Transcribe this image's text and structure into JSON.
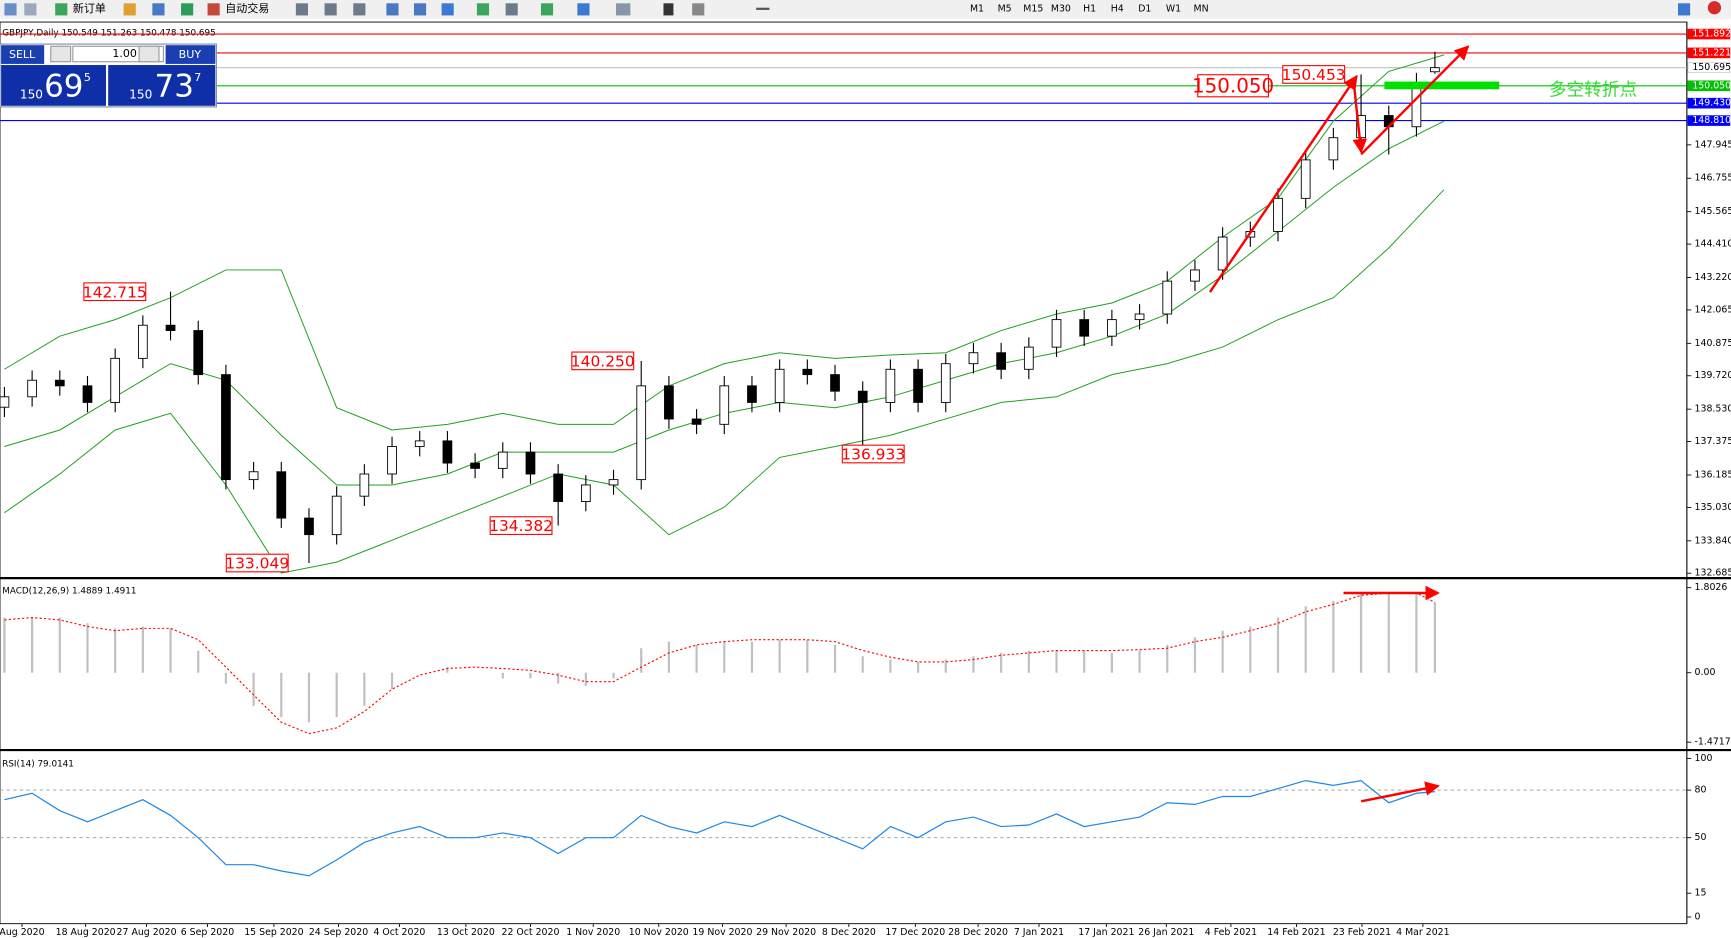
{
  "toolbar": {
    "new_order": "新订单",
    "auto_trade": "自动交易",
    "timeframes": [
      "M1",
      "M5",
      "M15",
      "M30",
      "H1",
      "H4",
      "D1",
      "W1",
      "MN"
    ]
  },
  "trade_panel": {
    "sell": "SELL",
    "lot": "1.00",
    "buy": "BUY",
    "bid_big": "150",
    "bid": "69",
    "bid_pip": "5",
    "ask_big": "150",
    "ask": "73",
    "ask_pip": "7"
  },
  "note": "多空转折点",
  "chart_data": [
    {
      "type": "candlestick",
      "title": "GBPJPY,Daily  150.549 151.263 150.478 150.695",
      "x": [
        0,
        3,
        6,
        9,
        12,
        15,
        18,
        21,
        24,
        27,
        30,
        33,
        36,
        39,
        42,
        45,
        48,
        51,
        54,
        57,
        60,
        63,
        66,
        69,
        72,
        75,
        78,
        81,
        84,
        87,
        90,
        93,
        96,
        99,
        102,
        105,
        108,
        111,
        114,
        117,
        120,
        123,
        126,
        129,
        132,
        135,
        138,
        141,
        144,
        147,
        150,
        153,
        155
      ],
      "open": [
        138.6,
        138.97,
        139.56,
        139.36,
        138.77,
        140.34,
        141.52,
        141.33,
        139.76,
        136.02,
        136.3,
        134.65,
        134.06,
        135.43,
        136.22,
        137.2,
        137.4,
        136.61,
        136.42,
        137.0,
        136.22,
        135.24,
        135.83,
        136.02,
        139.36,
        138.18,
        137.99,
        139.36,
        138.77,
        139.95,
        139.76,
        139.17,
        138.77,
        139.95,
        138.77,
        140.15,
        140.54,
        139.95,
        140.74,
        141.72,
        141.13,
        141.72,
        141.92,
        143.09,
        143.49,
        144.66,
        144.86,
        146.04,
        147.41,
        148.2,
        148.99,
        148.59,
        150.549
      ],
      "high": [
        139.32,
        139.91,
        139.91,
        139.71,
        140.69,
        141.87,
        142.715,
        141.68,
        140.11,
        136.65,
        136.65,
        135.0,
        135.78,
        136.57,
        137.55,
        137.75,
        137.75,
        136.96,
        137.35,
        137.35,
        136.57,
        136.18,
        136.37,
        140.25,
        139.71,
        138.53,
        139.71,
        139.71,
        140.3,
        140.3,
        140.11,
        139.52,
        140.3,
        140.3,
        140.5,
        140.89,
        140.89,
        141.09,
        142.07,
        142.07,
        142.07,
        142.27,
        143.44,
        143.84,
        145.01,
        145.21,
        146.39,
        147.76,
        148.55,
        150.453,
        149.34,
        150.51,
        151.263
      ],
      "low": [
        138.25,
        138.62,
        139.01,
        138.42,
        138.42,
        139.99,
        140.98,
        139.41,
        135.67,
        135.67,
        134.3,
        133.049,
        133.71,
        135.08,
        135.87,
        136.85,
        136.26,
        136.07,
        136.07,
        135.87,
        134.382,
        134.89,
        135.48,
        135.67,
        137.83,
        137.64,
        137.64,
        138.42,
        138.42,
        139.41,
        138.82,
        136.933,
        138.42,
        138.42,
        138.42,
        139.8,
        139.6,
        139.6,
        140.39,
        140.78,
        140.78,
        141.37,
        141.57,
        142.74,
        143.14,
        144.31,
        144.51,
        145.69,
        147.06,
        147.85,
        147.6,
        148.24,
        150.478
      ],
      "close": [
        138.97,
        139.56,
        139.36,
        138.77,
        140.34,
        141.52,
        141.33,
        139.76,
        136.02,
        136.3,
        134.65,
        134.06,
        135.43,
        136.22,
        137.2,
        137.4,
        136.61,
        136.42,
        137.0,
        136.22,
        135.24,
        135.83,
        136.02,
        139.36,
        138.18,
        137.99,
        139.36,
        138.77,
        139.95,
        139.76,
        139.17,
        138.77,
        139.95,
        138.77,
        140.15,
        140.54,
        139.95,
        140.74,
        141.72,
        141.13,
        141.72,
        141.92,
        143.09,
        143.49,
        144.66,
        144.86,
        146.04,
        147.41,
        148.2,
        148.99,
        148.59,
        150.16,
        150.695
      ],
      "bollinger": {
        "color": "#1fa01f",
        "x": [
          0,
          6,
          12,
          18,
          24,
          30,
          36,
          42,
          48,
          54,
          60,
          66,
          72,
          78,
          84,
          90,
          96,
          102,
          108,
          114,
          120,
          126,
          132,
          138,
          144,
          150,
          156
        ],
        "upper": [
          139.95,
          141.13,
          141.72,
          142.5,
          143.49,
          143.49,
          138.58,
          137.79,
          137.99,
          138.38,
          137.99,
          137.99,
          139.36,
          140.15,
          140.54,
          140.34,
          140.46,
          140.54,
          141.33,
          141.92,
          142.31,
          143.09,
          144.66,
          146.04,
          148.79,
          150.56,
          151.15
        ],
        "middle": [
          137.2,
          137.79,
          138.97,
          140.15,
          139.56,
          137.6,
          135.83,
          135.83,
          136.22,
          137.0,
          137.0,
          137.0,
          137.79,
          138.38,
          138.77,
          138.58,
          138.97,
          139.56,
          140.15,
          140.54,
          141.13,
          141.92,
          143.29,
          144.86,
          146.43,
          147.81,
          148.79
        ],
        "lower": [
          134.84,
          136.22,
          137.79,
          138.38,
          135.83,
          132.69,
          133.08,
          133.86,
          134.65,
          135.43,
          136.22,
          135.83,
          134.06,
          135.04,
          136.81,
          137.2,
          137.6,
          138.18,
          138.77,
          138.97,
          139.76,
          140.15,
          140.74,
          141.72,
          142.5,
          144.27,
          146.35
        ]
      },
      "ylim": [
        132.57,
        152.32
      ],
      "yticks": [
        132.685,
        {
          "value": 133.84,
          "label": "133.840"
        },
        {
          "value": 135.03,
          "label": "135.030"
        },
        136.185,
        137.375,
        {
          "value": 138.53,
          "label": "138.530"
        },
        {
          "value": 139.72,
          "label": "139.720"
        },
        140.875,
        142.065,
        {
          "value": 143.22,
          "label": "143.220"
        },
        {
          "value": 144.41,
          "label": "144.410"
        },
        145.565,
        146.755,
        147.945
      ],
      "xlim": [
        -0.48,
        182.3
      ],
      "xticks": [
        {
          "value": 1.9,
          "label": "Aug 2020"
        },
        {
          "value": 8.8,
          "label": "18 Aug 2020"
        },
        {
          "value": 15.4,
          "label": "27 Aug 2020"
        },
        {
          "value": 22.0,
          "label": "6 Sep 2020"
        },
        {
          "value": 29.2,
          "label": "15 Sep 2020"
        },
        {
          "value": 36.2,
          "label": "24 Sep 2020"
        },
        {
          "value": 42.8,
          "label": "4 Oct 2020"
        },
        {
          "value": 50.0,
          "label": "13 Oct 2020"
        },
        {
          "value": 57.0,
          "label": "22 Oct 2020"
        },
        {
          "value": 63.8,
          "label": "1 Nov 2020"
        },
        {
          "value": 70.9,
          "label": "10 Nov 2020"
        },
        {
          "value": 77.8,
          "label": "19 Nov 2020"
        },
        {
          "value": 84.7,
          "label": "29 Nov 2020"
        },
        {
          "value": 91.5,
          "label": "8 Dec 2020"
        },
        {
          "value": 98.7,
          "label": "17 Dec 2020"
        },
        {
          "value": 105.5,
          "label": "28 Dec 2020"
        },
        {
          "value": 112.1,
          "label": "7 Jan 2021"
        },
        {
          "value": 119.4,
          "label": "17 Jan 2021"
        },
        {
          "value": 125.9,
          "label": "26 Jan 2021"
        },
        {
          "value": 132.9,
          "label": "4 Feb 2021"
        },
        {
          "value": 140.0,
          "label": "14 Feb 2021"
        },
        {
          "value": 147.1,
          "label": "23 Feb 2021"
        },
        {
          "value": 153.7,
          "label": "4 Mar 2021"
        }
      ],
      "levels": [
        {
          "value": 151.892,
          "color": "#ff0000",
          "box": "#ff0000",
          "text_color": "#ffffff"
        },
        {
          "value": 151.221,
          "color": "#ff0000",
          "box": "#ff0000",
          "text_color": "#ffffff"
        },
        {
          "value": 150.695,
          "color": "#c0c0c0",
          "box": "#ffffff",
          "text_color": "#000000"
        },
        {
          "value": 150.05,
          "label": "150.050",
          "color": "#00c000",
          "box": "#00c000",
          "text_color": "#ffffff"
        },
        {
          "value": 149.43,
          "label": "149.430",
          "color": "#0000ff",
          "box": "#0000ff",
          "text_color": "#ffffff"
        },
        {
          "value": 148.81,
          "label": "148.810",
          "color": "#0000ff",
          "box": "#0000ff",
          "text_color": "#ffffff"
        }
      ],
      "annotations": [
        142.715,
        {
          "value": 140.25,
          "label": "140.250"
        },
        136.933,
        134.382,
        133.049,
        {
          "value": 150.05,
          "label": "150.050"
        },
        150.453
      ]
    },
    {
      "type": "macd",
      "title": "MACD(12,26,9) 1.4889 1.4911",
      "hist_color": "#c0c0c0",
      "signal_color": "#ff0000",
      "histogram": [
        1.17,
        1.17,
        1.17,
        1.05,
        0.94,
        0.98,
        0.94,
        0.47,
        -0.23,
        -0.7,
        -0.94,
        -1.05,
        -0.94,
        -0.7,
        -0.35,
        0,
        0.12,
        0,
        -0.12,
        -0.12,
        -0.23,
        -0.28,
        -0.12,
        0.52,
        0.66,
        0.59,
        0.66,
        0.66,
        0.7,
        0.7,
        0.59,
        0.35,
        0.28,
        0.23,
        0.28,
        0.35,
        0.42,
        0.47,
        0.47,
        0.47,
        0.42,
        0.47,
        0.59,
        0.75,
        0.89,
        0.98,
        1.17,
        1.41,
        1.52,
        1.69,
        1.69,
        1.69,
        1.4889
      ],
      "signal": [
        1.12,
        1.17,
        1.12,
        0.98,
        0.89,
        0.94,
        0.94,
        0.7,
        0.12,
        -0.47,
        -1.05,
        -1.29,
        -1.17,
        -0.82,
        -0.35,
        -0.05,
        0.09,
        0.12,
        0.09,
        0.05,
        -0.05,
        -0.19,
        -0.19,
        0.12,
        0.42,
        0.59,
        0.66,
        0.7,
        0.7,
        0.7,
        0.66,
        0.47,
        0.33,
        0.23,
        0.23,
        0.28,
        0.37,
        0.42,
        0.47,
        0.47,
        0.47,
        0.49,
        0.52,
        0.66,
        0.75,
        0.89,
        1.05,
        1.29,
        1.45,
        1.64,
        1.69,
        1.69,
        1.4911
      ],
      "ylim": [
        -1.58,
        1.97
      ],
      "yticks": [
        1.8026,
        {
          "value": 0,
          "label": "0.00"
        },
        -1.4717
      ]
    },
    {
      "type": "line",
      "title": "RSI(14) 79.0141",
      "color": "#1e88e5",
      "values": [
        74,
        78,
        67,
        60,
        67,
        74,
        64,
        50,
        33,
        33,
        29,
        26,
        36,
        47,
        53,
        57,
        50,
        50,
        53,
        50,
        40,
        50,
        50,
        64,
        57,
        53,
        60,
        57,
        64,
        57,
        50,
        43,
        57,
        50,
        60,
        63,
        57,
        58,
        65,
        57,
        60,
        63,
        72,
        71,
        76,
        76,
        81,
        86,
        83,
        86,
        72,
        78,
        79.0141
      ],
      "ylim": [
        -4.2,
        103.5
      ],
      "yticks": [
        100,
        80,
        50,
        15,
        0
      ],
      "levels": [
        80,
        50
      ]
    }
  ]
}
